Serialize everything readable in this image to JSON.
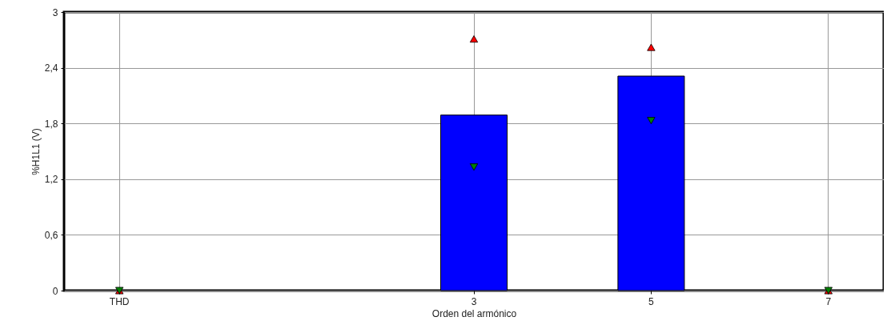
{
  "chart_data": {
    "type": "bar",
    "xlabel": "Orden del armónico",
    "ylabel": "%H1L1 (V)",
    "categories": [
      "THD",
      null,
      null,
      null,
      "3",
      null,
      "5",
      null,
      "7"
    ],
    "series": [
      {
        "color": "#0000ff",
        "values": [
          0,
          null,
          null,
          null,
          1.89,
          null,
          2.31,
          null,
          0
        ]
      },
      {
        "type": "scatter",
        "marker": "triangle",
        "color": "#ff0000",
        "values": [
          0,
          null,
          null,
          null,
          2.71,
          null,
          2.62,
          null,
          0
        ]
      },
      {
        "type": "scatter",
        "marker": "triangle-down",
        "color": "#008000",
        "values": [
          0,
          null,
          null,
          null,
          1.33,
          null,
          1.83,
          null,
          0
        ]
      }
    ],
    "ylim": [
      0,
      3
    ],
    "yticks": [
      0,
      {
        "value": 0.6,
        "label": "0,6"
      },
      {
        "value": 1.2,
        "label": "1,2"
      },
      {
        "value": 1.8,
        "label": "1,8"
      },
      {
        "value": 2.4,
        "label": "2,4"
      },
      3
    ],
    "grid": true
  }
}
